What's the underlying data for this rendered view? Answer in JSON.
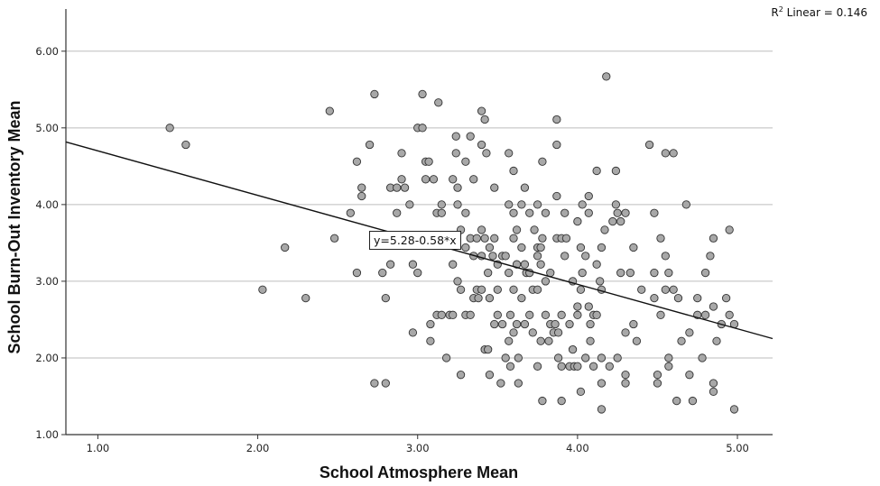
{
  "chart_data": {
    "type": "scatter",
    "xlabel": "School Atmosphere Mean",
    "ylabel": "School Burn-Out Inventory Mean",
    "xlim": [
      0.8,
      5.22
    ],
    "ylim": [
      1.0,
      6.55
    ],
    "xticks": [
      "1.00",
      "2.00",
      "3.00",
      "4.00",
      "5.00"
    ],
    "yticks": [
      "1.00",
      "2.00",
      "3.00",
      "4.00",
      "5.00",
      "6.00"
    ],
    "grid": "horizontal",
    "fit": {
      "equation": "y=5.28-0.58*x",
      "intercept": 5.28,
      "slope": -0.58
    },
    "r2_label": "Linear = 0.146",
    "points": [
      [
        1.45,
        5.0
      ],
      [
        1.55,
        4.78
      ],
      [
        2.03,
        2.89
      ],
      [
        2.17,
        3.44
      ],
      [
        2.3,
        2.78
      ],
      [
        2.45,
        5.22
      ],
      [
        2.48,
        3.56
      ],
      [
        2.58,
        3.89
      ],
      [
        2.62,
        4.56
      ],
      [
        2.62,
        3.11
      ],
      [
        2.65,
        4.22
      ],
      [
        2.65,
        4.11
      ],
      [
        2.7,
        4.78
      ],
      [
        2.73,
        5.44
      ],
      [
        2.73,
        1.67
      ],
      [
        2.78,
        3.11
      ],
      [
        2.8,
        2.78
      ],
      [
        2.8,
        1.67
      ],
      [
        2.83,
        4.22
      ],
      [
        2.83,
        3.22
      ],
      [
        2.87,
        4.22
      ],
      [
        2.87,
        3.89
      ],
      [
        2.9,
        4.67
      ],
      [
        2.9,
        4.33
      ],
      [
        2.92,
        4.22
      ],
      [
        2.92,
        3.56
      ],
      [
        2.95,
        4.0
      ],
      [
        2.97,
        3.22
      ],
      [
        2.97,
        2.33
      ],
      [
        3.0,
        5.0
      ],
      [
        3.0,
        3.11
      ],
      [
        3.03,
        5.0
      ],
      [
        3.03,
        5.44
      ],
      [
        3.05,
        4.56
      ],
      [
        3.05,
        4.33
      ],
      [
        3.07,
        4.56
      ],
      [
        3.08,
        2.44
      ],
      [
        3.08,
        2.22
      ],
      [
        3.1,
        4.33
      ],
      [
        3.12,
        3.89
      ],
      [
        3.12,
        3.56
      ],
      [
        3.12,
        2.56
      ],
      [
        3.13,
        5.33
      ],
      [
        3.15,
        4.0
      ],
      [
        3.15,
        3.89
      ],
      [
        3.15,
        2.56
      ],
      [
        3.18,
        2.0
      ],
      [
        3.2,
        2.56
      ],
      [
        3.22,
        4.33
      ],
      [
        3.22,
        3.22
      ],
      [
        3.22,
        2.56
      ],
      [
        3.24,
        4.89
      ],
      [
        3.24,
        4.67
      ],
      [
        3.25,
        4.22
      ],
      [
        3.25,
        4.0
      ],
      [
        3.25,
        3.0
      ],
      [
        3.27,
        3.67
      ],
      [
        3.27,
        2.89
      ],
      [
        3.27,
        1.78
      ],
      [
        3.3,
        4.56
      ],
      [
        3.3,
        3.89
      ],
      [
        3.3,
        3.44
      ],
      [
        3.3,
        2.56
      ],
      [
        3.33,
        4.89
      ],
      [
        3.33,
        3.56
      ],
      [
        3.33,
        2.56
      ],
      [
        3.35,
        4.33
      ],
      [
        3.35,
        3.33
      ],
      [
        3.35,
        2.78
      ],
      [
        3.37,
        3.56
      ],
      [
        3.37,
        2.89
      ],
      [
        3.38,
        2.78
      ],
      [
        3.4,
        5.22
      ],
      [
        3.4,
        4.78
      ],
      [
        3.4,
        3.67
      ],
      [
        3.4,
        3.33
      ],
      [
        3.4,
        2.89
      ],
      [
        3.42,
        5.11
      ],
      [
        3.42,
        3.56
      ],
      [
        3.42,
        2.11
      ],
      [
        3.43,
        4.67
      ],
      [
        3.44,
        3.11
      ],
      [
        3.44,
        2.11
      ],
      [
        3.45,
        3.44
      ],
      [
        3.45,
        2.78
      ],
      [
        3.45,
        1.78
      ],
      [
        3.47,
        3.33
      ],
      [
        3.48,
        4.22
      ],
      [
        3.48,
        3.56
      ],
      [
        3.48,
        2.44
      ],
      [
        3.5,
        2.56
      ],
      [
        3.5,
        2.89
      ],
      [
        3.5,
        3.22
      ],
      [
        3.52,
        1.67
      ],
      [
        3.53,
        3.33
      ],
      [
        3.53,
        2.44
      ],
      [
        3.55,
        3.33
      ],
      [
        3.55,
        2.0
      ],
      [
        3.57,
        4.67
      ],
      [
        3.57,
        4.0
      ],
      [
        3.57,
        3.11
      ],
      [
        3.57,
        2.22
      ],
      [
        3.58,
        2.56
      ],
      [
        3.58,
        1.89
      ],
      [
        3.6,
        4.44
      ],
      [
        3.6,
        3.89
      ],
      [
        3.6,
        3.56
      ],
      [
        3.6,
        2.89
      ],
      [
        3.6,
        2.33
      ],
      [
        3.62,
        3.67
      ],
      [
        3.62,
        3.22
      ],
      [
        3.62,
        2.44
      ],
      [
        3.63,
        2.0
      ],
      [
        3.63,
        1.67
      ],
      [
        3.65,
        4.0
      ],
      [
        3.65,
        3.44
      ],
      [
        3.65,
        2.78
      ],
      [
        3.67,
        4.22
      ],
      [
        3.67,
        3.22
      ],
      [
        3.67,
        2.44
      ],
      [
        3.68,
        3.11
      ],
      [
        3.7,
        3.89
      ],
      [
        3.7,
        3.11
      ],
      [
        3.7,
        2.56
      ],
      [
        3.72,
        2.89
      ],
      [
        3.72,
        2.33
      ],
      [
        3.73,
        3.67
      ],
      [
        3.75,
        4.0
      ],
      [
        3.75,
        3.44
      ],
      [
        3.75,
        3.33
      ],
      [
        3.75,
        2.89
      ],
      [
        3.75,
        1.89
      ],
      [
        3.77,
        3.44
      ],
      [
        3.77,
        3.22
      ],
      [
        3.77,
        2.22
      ],
      [
        3.78,
        4.56
      ],
      [
        3.78,
        3.56
      ],
      [
        3.78,
        1.44
      ],
      [
        3.8,
        3.89
      ],
      [
        3.8,
        3.0
      ],
      [
        3.8,
        2.56
      ],
      [
        3.82,
        2.22
      ],
      [
        3.83,
        3.11
      ],
      [
        3.83,
        2.44
      ],
      [
        3.85,
        2.33
      ],
      [
        3.86,
        2.44
      ],
      [
        3.87,
        5.11
      ],
      [
        3.87,
        4.78
      ],
      [
        3.87,
        4.11
      ],
      [
        3.87,
        3.56
      ],
      [
        3.88,
        2.33
      ],
      [
        3.88,
        2.0
      ],
      [
        3.9,
        3.56
      ],
      [
        3.9,
        2.56
      ],
      [
        3.9,
        1.89
      ],
      [
        3.9,
        1.44
      ],
      [
        3.92,
        3.89
      ],
      [
        3.92,
        3.33
      ],
      [
        3.93,
        3.56
      ],
      [
        3.95,
        2.44
      ],
      [
        3.95,
        1.89
      ],
      [
        3.97,
        3.0
      ],
      [
        3.97,
        2.11
      ],
      [
        3.98,
        1.89
      ],
      [
        4.0,
        3.78
      ],
      [
        4.0,
        2.67
      ],
      [
        4.0,
        2.56
      ],
      [
        4.0,
        1.89
      ],
      [
        4.02,
        3.44
      ],
      [
        4.02,
        2.89
      ],
      [
        4.02,
        1.56
      ],
      [
        4.03,
        4.0
      ],
      [
        4.03,
        3.11
      ],
      [
        4.05,
        3.33
      ],
      [
        4.05,
        2.0
      ],
      [
        4.07,
        4.11
      ],
      [
        4.07,
        3.89
      ],
      [
        4.07,
        2.67
      ],
      [
        4.08,
        2.44
      ],
      [
        4.08,
        2.22
      ],
      [
        4.1,
        2.56
      ],
      [
        4.1,
        1.89
      ],
      [
        4.12,
        4.44
      ],
      [
        4.12,
        3.22
      ],
      [
        4.12,
        2.56
      ],
      [
        4.14,
        3.0
      ],
      [
        4.15,
        3.44
      ],
      [
        4.15,
        2.89
      ],
      [
        4.15,
        2.0
      ],
      [
        4.15,
        1.67
      ],
      [
        4.15,
        1.33
      ],
      [
        4.17,
        3.67
      ],
      [
        4.18,
        5.67
      ],
      [
        4.2,
        1.89
      ],
      [
        4.22,
        3.78
      ],
      [
        4.24,
        4.44
      ],
      [
        4.24,
        4.0
      ],
      [
        4.25,
        3.89
      ],
      [
        4.25,
        2.0
      ],
      [
        4.27,
        3.11
      ],
      [
        4.27,
        3.78
      ],
      [
        4.3,
        3.89
      ],
      [
        4.3,
        2.33
      ],
      [
        4.3,
        1.78
      ],
      [
        4.3,
        1.67
      ],
      [
        4.33,
        3.11
      ],
      [
        4.35,
        3.44
      ],
      [
        4.35,
        2.44
      ],
      [
        4.37,
        2.22
      ],
      [
        4.4,
        2.89
      ],
      [
        4.45,
        4.78
      ],
      [
        4.48,
        3.89
      ],
      [
        4.48,
        3.11
      ],
      [
        4.48,
        2.78
      ],
      [
        4.5,
        1.78
      ],
      [
        4.5,
        1.67
      ],
      [
        4.52,
        3.56
      ],
      [
        4.52,
        2.56
      ],
      [
        4.55,
        4.67
      ],
      [
        4.55,
        3.33
      ],
      [
        4.55,
        2.89
      ],
      [
        4.57,
        3.11
      ],
      [
        4.57,
        2.0
      ],
      [
        4.57,
        1.89
      ],
      [
        4.6,
        4.67
      ],
      [
        4.6,
        2.89
      ],
      [
        4.62,
        1.44
      ],
      [
        4.63,
        2.78
      ],
      [
        4.65,
        2.22
      ],
      [
        4.68,
        4.0
      ],
      [
        4.7,
        2.33
      ],
      [
        4.7,
        1.78
      ],
      [
        4.72,
        1.44
      ],
      [
        4.75,
        2.78
      ],
      [
        4.75,
        2.56
      ],
      [
        4.78,
        2.0
      ],
      [
        4.8,
        3.11
      ],
      [
        4.8,
        2.56
      ],
      [
        4.83,
        3.33
      ],
      [
        4.85,
        3.56
      ],
      [
        4.85,
        2.67
      ],
      [
        4.85,
        1.67
      ],
      [
        4.85,
        1.56
      ],
      [
        4.87,
        2.22
      ],
      [
        4.9,
        2.44
      ],
      [
        4.93,
        2.78
      ],
      [
        4.95,
        2.56
      ],
      [
        4.95,
        3.67
      ],
      [
        4.98,
        2.44
      ],
      [
        4.98,
        1.33
      ]
    ]
  }
}
